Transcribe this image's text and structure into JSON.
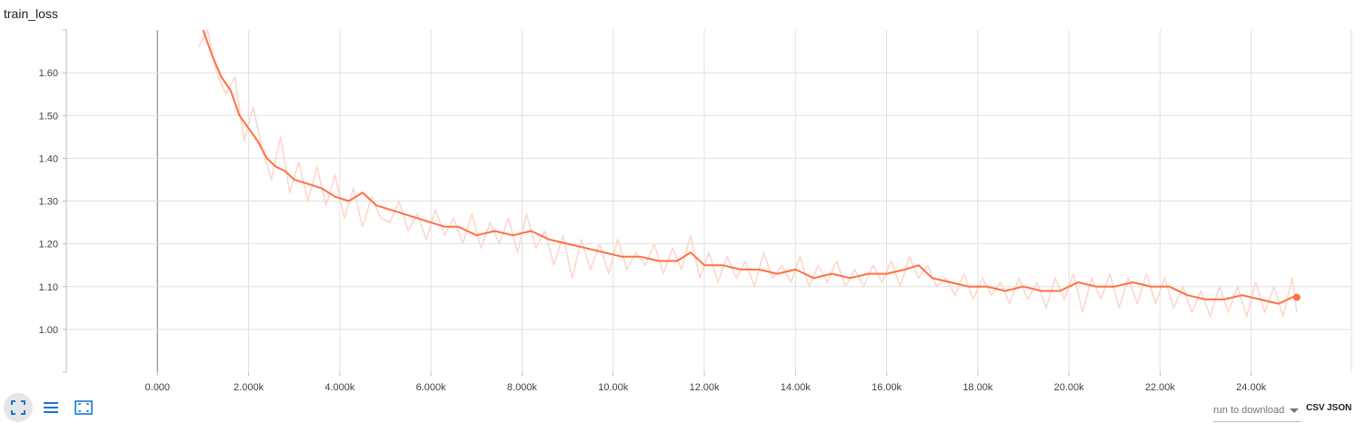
{
  "card": {
    "title": "train_loss"
  },
  "toolbar": {
    "icons": [
      "fullscreen-icon",
      "list-icon",
      "fit-domain-icon"
    ]
  },
  "download": {
    "label": "run to download",
    "csv_label": "CSV",
    "json_label": "JSON"
  },
  "colors": {
    "smoothed": "#ff7043",
    "raw": "#fbd4c5",
    "grid": "#e0e0e0",
    "zero_line": "#9e9e9e",
    "icon_blue": "#1976d2"
  },
  "chart_data": {
    "type": "line",
    "title": "train_loss",
    "xlabel": "",
    "ylabel": "",
    "xlim": [
      -2000,
      26200
    ],
    "ylim": [
      0.9,
      1.7
    ],
    "x_ticks": [
      0,
      2000,
      4000,
      6000,
      8000,
      10000,
      12000,
      14000,
      16000,
      18000,
      20000,
      22000,
      24000
    ],
    "x_tick_labels": [
      "0.000",
      "2.000k",
      "4.000k",
      "6.000k",
      "8.000k",
      "10.00k",
      "12.00k",
      "14.00k",
      "16.00k",
      "18.00k",
      "20.00k",
      "22.00k",
      "24.00k"
    ],
    "y_ticks": [
      1.0,
      1.1,
      1.2,
      1.3,
      1.4,
      1.5,
      1.6
    ],
    "y_tick_labels": [
      "1.00",
      "1.10",
      "1.20",
      "1.30",
      "1.40",
      "1.50",
      "1.60"
    ],
    "grid": true,
    "series": [
      {
        "role": "smoothed",
        "x": [
          1000,
          1200,
          1400,
          1600,
          1800,
          2000,
          2200,
          2400,
          2600,
          2800,
          3000,
          3300,
          3600,
          3900,
          4200,
          4500,
          4800,
          5100,
          5400,
          5700,
          6000,
          6300,
          6600,
          7000,
          7400,
          7800,
          8200,
          8600,
          9000,
          9400,
          9800,
          10200,
          10600,
          11000,
          11400,
          11700,
          12000,
          12400,
          12800,
          13200,
          13600,
          14000,
          14400,
          14800,
          15200,
          15600,
          16000,
          16400,
          16700,
          17000,
          17400,
          17800,
          18200,
          18600,
          19000,
          19400,
          19800,
          20200,
          20600,
          21000,
          21400,
          21800,
          22200,
          22600,
          23000,
          23400,
          23800,
          24200,
          24600,
          25000
        ],
        "y": [
          1.7,
          1.64,
          1.59,
          1.56,
          1.5,
          1.47,
          1.44,
          1.4,
          1.38,
          1.37,
          1.35,
          1.34,
          1.33,
          1.31,
          1.3,
          1.32,
          1.29,
          1.28,
          1.27,
          1.26,
          1.25,
          1.24,
          1.24,
          1.22,
          1.23,
          1.22,
          1.23,
          1.21,
          1.2,
          1.19,
          1.18,
          1.17,
          1.17,
          1.16,
          1.16,
          1.18,
          1.15,
          1.15,
          1.14,
          1.14,
          1.13,
          1.14,
          1.12,
          1.13,
          1.12,
          1.13,
          1.13,
          1.14,
          1.15,
          1.12,
          1.11,
          1.1,
          1.1,
          1.09,
          1.1,
          1.09,
          1.09,
          1.11,
          1.1,
          1.1,
          1.11,
          1.1,
          1.1,
          1.08,
          1.07,
          1.07,
          1.08,
          1.07,
          1.06,
          1.08
        ]
      },
      {
        "role": "raw",
        "x": [
          900,
          1100,
          1300,
          1500,
          1700,
          1900,
          2100,
          2300,
          2500,
          2700,
          2900,
          3100,
          3300,
          3500,
          3700,
          3900,
          4100,
          4300,
          4500,
          4700,
          4900,
          5100,
          5300,
          5500,
          5700,
          5900,
          6100,
          6300,
          6500,
          6700,
          6900,
          7100,
          7300,
          7500,
          7700,
          7900,
          8100,
          8300,
          8500,
          8700,
          8900,
          9100,
          9300,
          9500,
          9700,
          9900,
          10100,
          10300,
          10500,
          10700,
          10900,
          11100,
          11300,
          11500,
          11700,
          11900,
          12100,
          12300,
          12500,
          12700,
          12900,
          13100,
          13300,
          13500,
          13700,
          13900,
          14100,
          14300,
          14500,
          14700,
          14900,
          15100,
          15300,
          15500,
          15700,
          15900,
          16100,
          16300,
          16500,
          16700,
          16900,
          17100,
          17300,
          17500,
          17700,
          17900,
          18100,
          18300,
          18500,
          18700,
          18900,
          19100,
          19300,
          19500,
          19700,
          19900,
          20100,
          20300,
          20500,
          20700,
          20900,
          21100,
          21300,
          21500,
          21700,
          21900,
          22100,
          22300,
          22500,
          22700,
          22900,
          23100,
          23300,
          23500,
          23700,
          23900,
          24100,
          24300,
          24500,
          24700,
          24900,
          25000
        ],
        "y": [
          1.66,
          1.7,
          1.6,
          1.55,
          1.59,
          1.44,
          1.52,
          1.42,
          1.35,
          1.45,
          1.32,
          1.39,
          1.3,
          1.38,
          1.29,
          1.36,
          1.26,
          1.33,
          1.24,
          1.31,
          1.26,
          1.25,
          1.3,
          1.23,
          1.27,
          1.21,
          1.28,
          1.22,
          1.26,
          1.2,
          1.27,
          1.19,
          1.25,
          1.2,
          1.26,
          1.18,
          1.27,
          1.19,
          1.23,
          1.15,
          1.22,
          1.12,
          1.21,
          1.14,
          1.2,
          1.13,
          1.21,
          1.14,
          1.18,
          1.15,
          1.2,
          1.13,
          1.19,
          1.14,
          1.22,
          1.12,
          1.18,
          1.11,
          1.17,
          1.12,
          1.16,
          1.1,
          1.18,
          1.12,
          1.15,
          1.11,
          1.17,
          1.1,
          1.15,
          1.11,
          1.16,
          1.1,
          1.14,
          1.1,
          1.15,
          1.11,
          1.16,
          1.1,
          1.17,
          1.12,
          1.15,
          1.1,
          1.12,
          1.08,
          1.13,
          1.07,
          1.12,
          1.08,
          1.11,
          1.06,
          1.12,
          1.07,
          1.11,
          1.05,
          1.12,
          1.07,
          1.13,
          1.04,
          1.12,
          1.07,
          1.13,
          1.05,
          1.12,
          1.06,
          1.13,
          1.06,
          1.12,
          1.05,
          1.1,
          1.04,
          1.09,
          1.03,
          1.1,
          1.04,
          1.1,
          1.03,
          1.11,
          1.04,
          1.1,
          1.03,
          1.12,
          1.04
        ]
      }
    ],
    "last_point": {
      "x": 25000,
      "y": 1.075
    }
  }
}
